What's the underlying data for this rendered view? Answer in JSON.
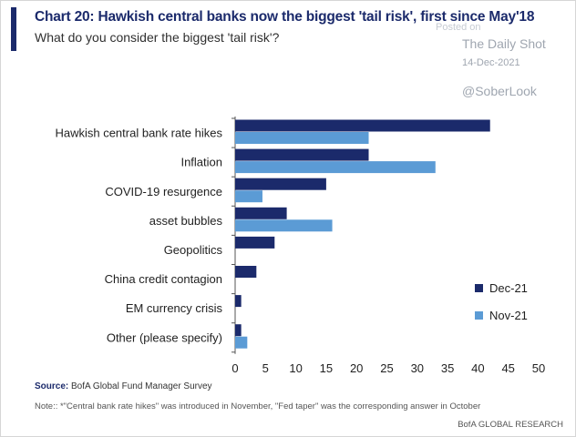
{
  "header": {
    "title": "Chart 20: Hawkish central banks now the biggest 'tail risk', first since May'18",
    "subtitle": "What do you consider the biggest 'tail risk'?"
  },
  "watermark": {
    "posted": "Posted on",
    "name": "The Daily Shot",
    "date": "14-Dec-2021",
    "handle": "@SoberLook"
  },
  "footer": {
    "source_label": "Source:",
    "source_text": "BofA Global Fund Manager Survey",
    "note": "Note:: *\"Central bank rate hikes\" was introduced in November, \"Fed taper\" was the corresponding answer in October",
    "brand": "BofA GLOBAL RESEARCH"
  },
  "chart_data": {
    "type": "bar",
    "orientation": "horizontal",
    "title": "Chart 20: Hawkish central banks now the biggest 'tail risk', first since May'18",
    "subtitle": "What do you consider the biggest 'tail risk'?",
    "categories": [
      "Hawkish central bank rate hikes",
      "Inflation",
      "COVID-19 resurgence",
      "asset bubbles",
      "Geopolitics",
      "China credit contagion",
      "EM currency crisis",
      "Other (please specify)"
    ],
    "series": [
      {
        "name": "Dec-21",
        "color": "#1b2a6b",
        "values": [
          42,
          22,
          15,
          8.5,
          6.5,
          3.5,
          1,
          1
        ]
      },
      {
        "name": "Nov-21",
        "color": "#5b9bd5",
        "values": [
          22,
          33,
          4.5,
          16,
          null,
          null,
          null,
          2
        ]
      }
    ],
    "xlim": [
      0,
      50
    ],
    "xticks": [
      0,
      5,
      10,
      15,
      20,
      25,
      30,
      35,
      40,
      45,
      50
    ],
    "legend_position": "bottom-right",
    "grid": false
  }
}
